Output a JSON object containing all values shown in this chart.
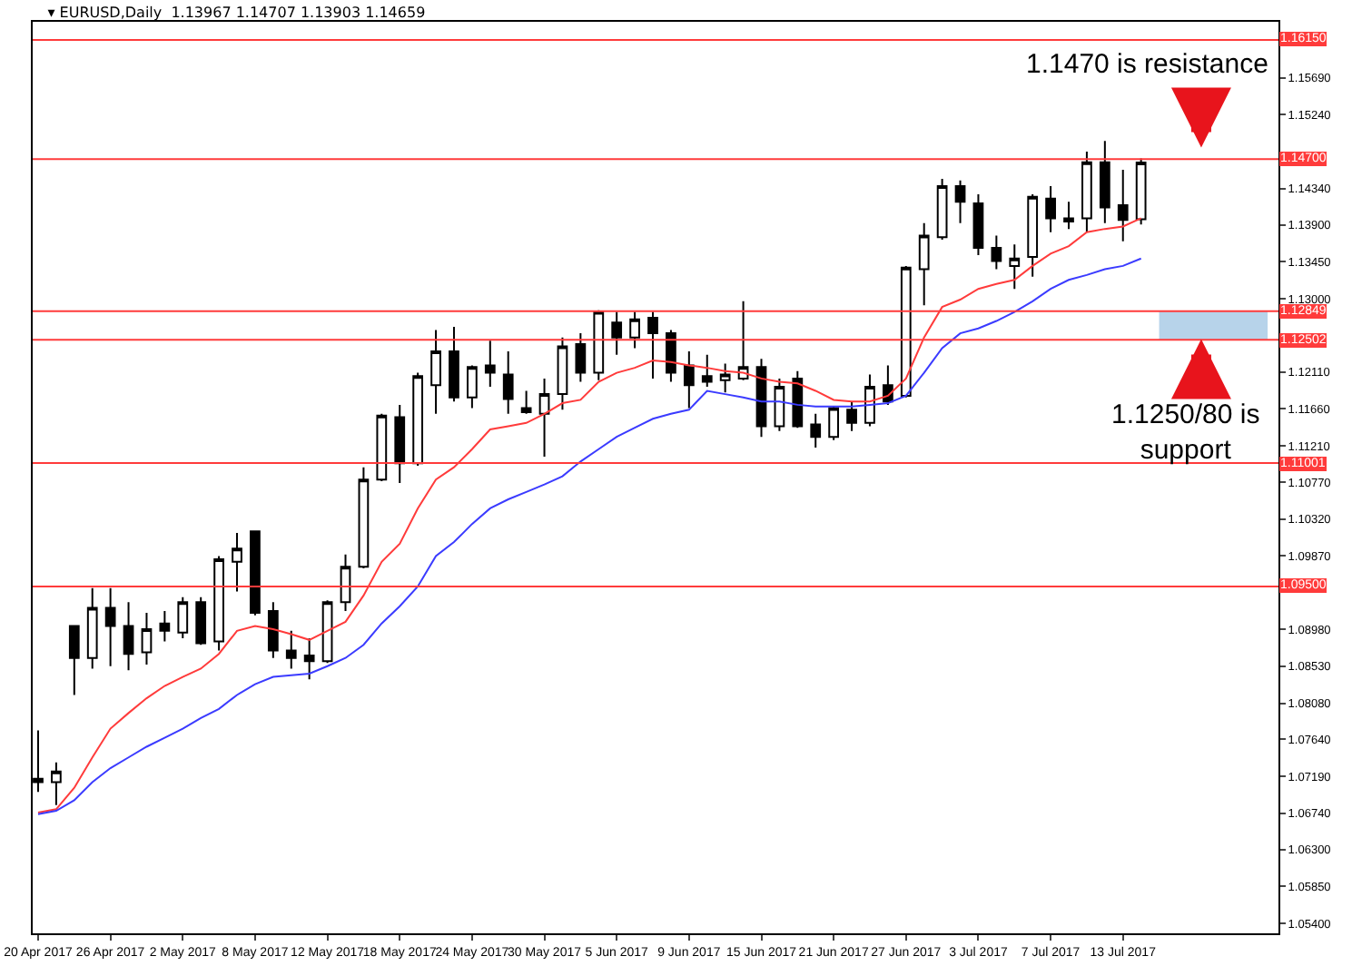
{
  "chart_data": {
    "type": "candlestick",
    "title": "▾ EURUSD,Daily  1.13967 1.14707 1.13903 1.14659",
    "categories": [
      "20 Apr 2017",
      null,
      null,
      null,
      "26 Apr 2017",
      null,
      null,
      null,
      "2 May 2017",
      null,
      null,
      null,
      "8 May 2017",
      null,
      null,
      null,
      "12 May 2017",
      null,
      null,
      null,
      "18 May 2017",
      null,
      null,
      null,
      "24 May 2017",
      null,
      null,
      null,
      "30 May 2017",
      null,
      null,
      null,
      "5 Jun 2017",
      null,
      null,
      null,
      "9 Jun 2017",
      null,
      null,
      null,
      "15 Jun 2017",
      null,
      null,
      null,
      "21 Jun 2017",
      null,
      null,
      null,
      "27 Jun 2017",
      null,
      null,
      null,
      "3 Jul 2017",
      null,
      null,
      null,
      "7 Jul 2017",
      null,
      null,
      null,
      "13 Jul 2017",
      null
    ],
    "ohlc": [
      [
        1.0716,
        1.0775,
        1.07,
        1.0712
      ],
      [
        1.0712,
        1.0736,
        1.0684,
        1.0725
      ],
      [
        1.0902,
        1.0902,
        1.0818,
        1.0863
      ],
      [
        1.0863,
        1.0948,
        1.085,
        1.0924
      ],
      [
        1.0924,
        1.0948,
        1.0853,
        1.0902
      ],
      [
        1.0902,
        1.0931,
        1.0848,
        1.0868
      ],
      [
        1.087,
        1.0918,
        1.0855,
        1.0898
      ],
      [
        1.0905,
        1.092,
        1.0883,
        1.0896
      ],
      [
        1.0894,
        1.0937,
        1.0887,
        1.0931
      ],
      [
        1.0931,
        1.0937,
        1.0879,
        1.0881
      ],
      [
        1.0883,
        1.0987,
        1.0872,
        1.0983
      ],
      [
        1.098,
        1.1015,
        1.0944,
        1.0996
      ],
      [
        1.1017,
        1.1017,
        1.0915,
        1.0918
      ],
      [
        1.092,
        1.0931,
        1.0863,
        1.0872
      ],
      [
        1.0872,
        1.0896,
        1.085,
        1.0863
      ],
      [
        1.0866,
        1.0887,
        1.0837,
        1.0859
      ],
      [
        1.0859,
        1.0933,
        1.0857,
        1.0931
      ],
      [
        1.0931,
        1.0989,
        1.092,
        1.0974
      ],
      [
        1.0974,
        1.1095,
        1.0972,
        1.108
      ],
      [
        1.108,
        1.116,
        1.1078,
        1.1158
      ],
      [
        1.1156,
        1.1171,
        1.1076,
        1.11
      ],
      [
        1.11,
        1.121,
        1.1097,
        1.1206
      ],
      [
        1.1195,
        1.1262,
        1.116,
        1.1236
      ],
      [
        1.1236,
        1.1266,
        1.1175,
        1.118
      ],
      [
        1.118,
        1.1219,
        1.1167,
        1.1217
      ],
      [
        1.1219,
        1.1249,
        1.1193,
        1.121
      ],
      [
        1.1208,
        1.1236,
        1.116,
        1.1178
      ],
      [
        1.1167,
        1.1188,
        1.116,
        1.1162
      ],
      [
        1.116,
        1.1203,
        1.1108,
        1.1184
      ],
      [
        1.1184,
        1.1253,
        1.1165,
        1.1242
      ],
      [
        1.1245,
        1.1258,
        1.1199,
        1.121
      ],
      [
        1.121,
        1.1286,
        1.1201,
        1.1284
      ],
      [
        1.1271,
        1.1284,
        1.1232,
        1.1253
      ],
      [
        1.1253,
        1.1284,
        1.124,
        1.1275
      ],
      [
        1.1277,
        1.1284,
        1.1203,
        1.1258
      ],
      [
        1.1258,
        1.1262,
        1.1199,
        1.121
      ],
      [
        1.1219,
        1.1236,
        1.1167,
        1.1195
      ],
      [
        1.1206,
        1.1232,
        1.1193,
        1.1199
      ],
      [
        1.1201,
        1.1221,
        1.1186,
        1.1208
      ],
      [
        1.1203,
        1.1297,
        1.1201,
        1.1217
      ],
      [
        1.1217,
        1.1227,
        1.1132,
        1.1145
      ],
      [
        1.1145,
        1.1203,
        1.1139,
        1.1193
      ],
      [
        1.1203,
        1.1212,
        1.1143,
        1.1145
      ],
      [
        1.1147,
        1.116,
        1.1119,
        1.1132
      ],
      [
        1.1132,
        1.1169,
        1.1128,
        1.1167
      ],
      [
        1.1165,
        1.1175,
        1.1139,
        1.1149
      ],
      [
        1.1149,
        1.1208,
        1.1145,
        1.1193
      ],
      [
        1.1195,
        1.1219,
        1.1171,
        1.1175
      ],
      [
        1.1182,
        1.134,
        1.118,
        1.1338
      ],
      [
        1.1336,
        1.1392,
        1.1292,
        1.1377
      ],
      [
        1.1375,
        1.1446,
        1.1372,
        1.1437
      ],
      [
        1.1437,
        1.1444,
        1.1392,
        1.1418
      ],
      [
        1.1416,
        1.1427,
        1.1353,
        1.1362
      ],
      [
        1.1362,
        1.1377,
        1.1336,
        1.1346
      ],
      [
        1.134,
        1.1366,
        1.1312,
        1.1349
      ],
      [
        1.1351,
        1.1427,
        1.1327,
        1.1424
      ],
      [
        1.1422,
        1.1437,
        1.1381,
        1.1398
      ],
      [
        1.1398,
        1.1418,
        1.1385,
        1.1394
      ],
      [
        1.1398,
        1.1479,
        1.1381,
        1.1466
      ],
      [
        1.1466,
        1.1492,
        1.1392,
        1.1411
      ],
      [
        1.1414,
        1.1457,
        1.137,
        1.1396
      ],
      [
        1.13967,
        1.14707,
        1.13903,
        1.14659
      ]
    ],
    "series": [
      {
        "type": "line",
        "color": "#ff3b3b",
        "values": [
          1.0675,
          1.0679,
          1.0705,
          1.0742,
          1.0777,
          1.0796,
          1.0814,
          1.0829,
          1.084,
          1.085,
          1.0868,
          1.0896,
          1.0902,
          1.0898,
          1.0892,
          1.0885,
          1.0896,
          1.0907,
          1.0939,
          1.098,
          1.1002,
          1.1045,
          1.108,
          1.1095,
          1.1117,
          1.1141,
          1.1145,
          1.1149,
          1.116,
          1.1173,
          1.1177,
          1.1199,
          1.121,
          1.1216,
          1.1225,
          1.1223,
          1.1219,
          1.1216,
          1.1212,
          1.121,
          1.1203,
          1.1199,
          1.1197,
          1.1188,
          1.1177,
          1.1175,
          1.1175,
          1.1182,
          1.1203,
          1.1253,
          1.129,
          1.1299,
          1.1312,
          1.1318,
          1.1323,
          1.134,
          1.1355,
          1.1364,
          1.1381,
          1.1385,
          1.1388,
          1.1398
        ]
      },
      {
        "type": "line",
        "color": "#3b3bff",
        "values": [
          1.0673,
          1.0677,
          1.069,
          1.0712,
          1.0729,
          1.0742,
          1.0755,
          1.0766,
          1.0777,
          1.079,
          1.0801,
          1.0818,
          1.0831,
          1.084,
          1.0842,
          1.0844,
          1.0853,
          1.0863,
          1.0879,
          1.0905,
          1.0926,
          1.095,
          1.0987,
          1.1004,
          1.1026,
          1.1045,
          1.1056,
          1.1065,
          1.1074,
          1.1084,
          1.1102,
          1.1117,
          1.1132,
          1.1143,
          1.1154,
          1.116,
          1.1165,
          1.1188,
          1.1184,
          1.118,
          1.1175,
          1.1175,
          1.1171,
          1.1169,
          1.1169,
          1.1169,
          1.1171,
          1.1173,
          1.1182,
          1.121,
          1.124,
          1.1258,
          1.1264,
          1.1273,
          1.1284,
          1.1297,
          1.1312,
          1.1323,
          1.1329,
          1.1336,
          1.134,
          1.1349
        ]
      }
    ],
    "ylim": [
      1.0528,
      1.1637
    ],
    "yticks": [
      {
        "value": 1.1569,
        "label": "1.15690"
      },
      {
        "value": 1.1524,
        "label": "1.15240"
      },
      {
        "value": 1.1434,
        "label": "1.14340"
      },
      {
        "value": 1.139,
        "label": "1.13900"
      },
      {
        "value": 1.1345,
        "label": "1.13450"
      },
      {
        "value": 1.13,
        "label": "1.13000"
      },
      {
        "value": 1.1211,
        "label": "1.12110"
      },
      {
        "value": 1.1166,
        "label": "1.11660"
      },
      {
        "value": 1.1121,
        "label": "1.11210"
      },
      {
        "value": 1.1077,
        "label": "1.10770"
      },
      {
        "value": 1.1032,
        "label": "1.10320"
      },
      {
        "value": 1.0987,
        "label": "1.09870"
      },
      {
        "value": 1.0898,
        "label": "1.08980"
      },
      {
        "value": 1.0853,
        "label": "1.08530"
      },
      {
        "value": 1.0808,
        "label": "1.08080"
      },
      {
        "value": 1.0764,
        "label": "1.07640"
      },
      {
        "value": 1.0719,
        "label": "1.07190"
      },
      {
        "value": 1.0674,
        "label": "1.06740"
      },
      {
        "value": 1.063,
        "label": "1.06300"
      },
      {
        "value": 1.0585,
        "label": "1.05850"
      },
      {
        "value": 1.054,
        "label": "1.05400"
      }
    ],
    "ref_lines": [
      {
        "axis": "y",
        "value": 1.1615,
        "label": "1.16150",
        "color": "#ff3b3b"
      },
      {
        "axis": "y",
        "value": 1.147,
        "label": "1.14700",
        "color": "#ff3b3b"
      },
      {
        "axis": "y",
        "value": 1.12849,
        "label": "1.12849",
        "color": "#ff3b3b"
      },
      {
        "axis": "y",
        "value": 1.12502,
        "label": "1.12502",
        "color": "#ff3b3b"
      },
      {
        "axis": "y",
        "value": 1.11001,
        "label": "1.11001",
        "color": "#ff3b3b"
      },
      {
        "axis": "y",
        "value": 1.095,
        "label": "1.09500",
        "color": "#ff3b3b"
      }
    ],
    "annotations": [
      "1.1470 is resistance",
      "1.1250/80 is\nsupport"
    ]
  }
}
